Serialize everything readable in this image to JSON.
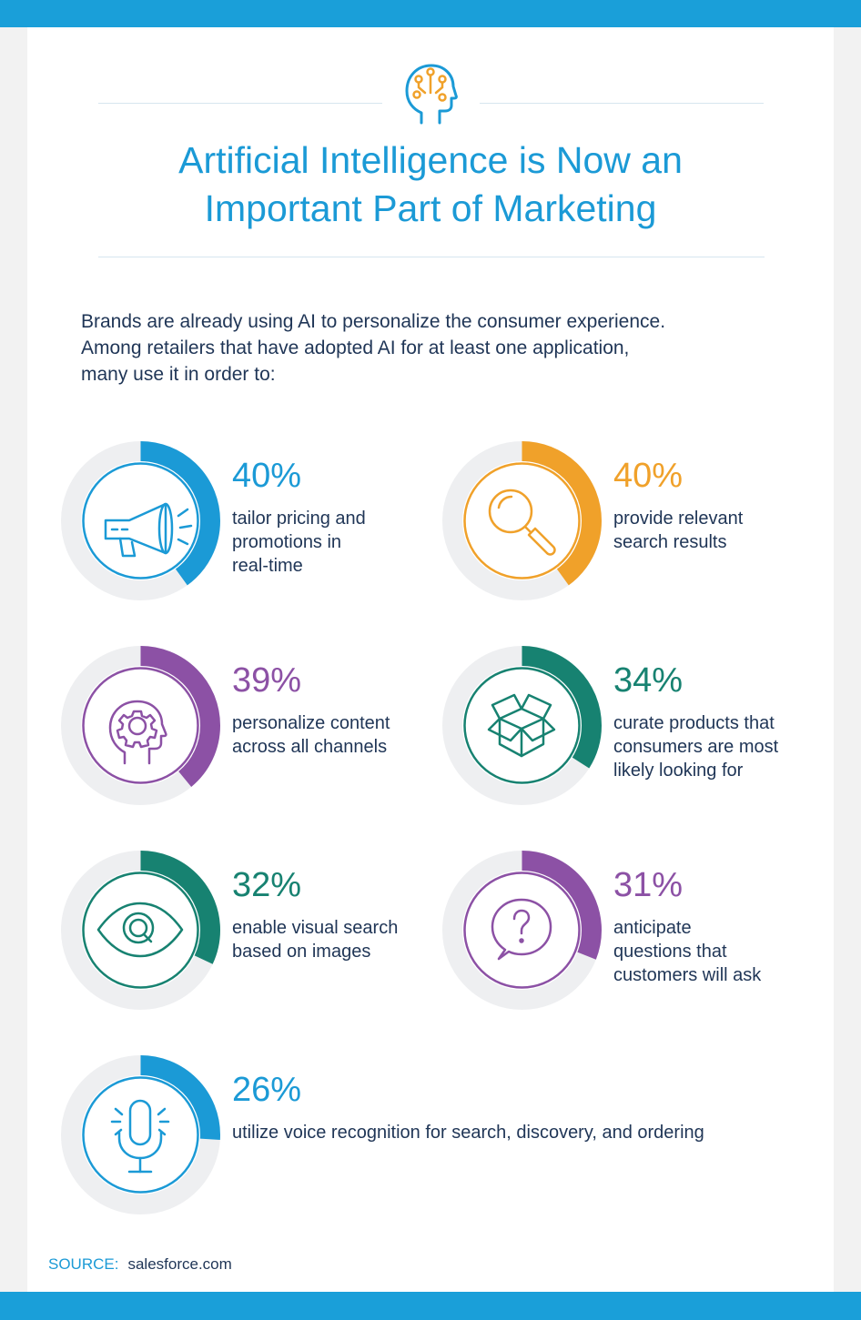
{
  "title_line1": "Artificial Intelligence is Now an",
  "title_line2": "Important Part of Marketing",
  "intro_line1": "Brands are already using AI to personalize the consumer experience.",
  "intro_line2": "Among retailers that have adopted AI for at least one application,",
  "intro_line3": "many use it in order to:",
  "colors": {
    "blue": "#1b9ad6",
    "orange": "#f0a12a",
    "purple": "#8c51a5",
    "teal": "#178271",
    "track": "#eeeff1",
    "text": "#1f3556"
  },
  "stats": [
    {
      "percent": "40%",
      "value": 40,
      "color": "#1b9ad6",
      "icon": "megaphone-icon",
      "label_lines": [
        "tailor pricing and",
        "promotions in",
        "real-time"
      ]
    },
    {
      "percent": "40%",
      "value": 40,
      "color": "#f0a12a",
      "icon": "magnifier-icon",
      "label_lines": [
        "provide relevant",
        "search results"
      ]
    },
    {
      "percent": "39%",
      "value": 39,
      "color": "#8c51a5",
      "icon": "head-gear-icon",
      "label_lines": [
        "personalize content",
        "across all channels"
      ]
    },
    {
      "percent": "34%",
      "value": 34,
      "color": "#178271",
      "icon": "open-box-icon",
      "label_lines": [
        "curate products that",
        "consumers are most",
        "likely looking for"
      ]
    },
    {
      "percent": "32%",
      "value": 32,
      "color": "#178271",
      "icon": "eye-icon",
      "label_lines": [
        "enable visual search",
        "based on images"
      ]
    },
    {
      "percent": "31%",
      "value": 31,
      "color": "#8c51a5",
      "icon": "question-bubble-icon",
      "label_lines": [
        "anticipate",
        "questions that",
        "customers will ask"
      ]
    },
    {
      "percent": "26%",
      "value": 26,
      "color": "#1b9ad6",
      "icon": "microphone-icon",
      "label_lines": [
        "utilize voice recognition for search, discovery, and ordering"
      ]
    }
  ],
  "source_label": "SOURCE:",
  "source_value": "salesforce.com"
}
